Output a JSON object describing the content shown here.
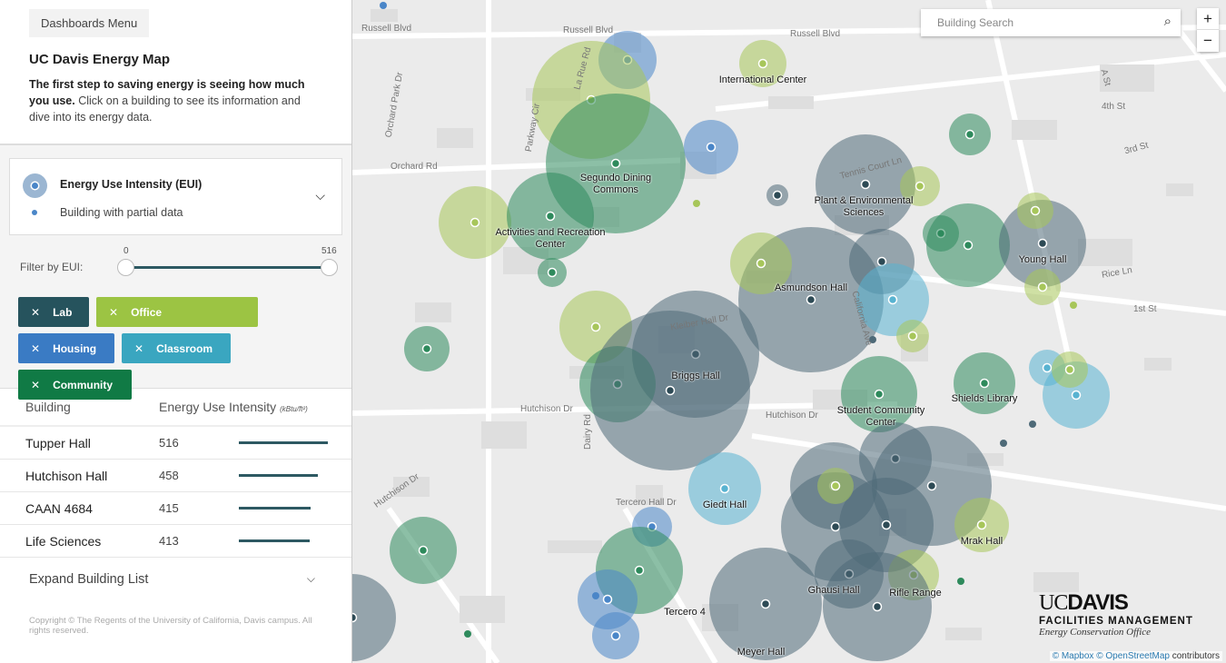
{
  "sidebar": {
    "menu_button": "Dashboards Menu",
    "title": "UC Davis Energy Map",
    "intro_bold": "The first step to saving energy is seeing how much you use.",
    "intro_rest": " Click on a building to see its information and dive into its energy data.",
    "legend": {
      "title": "Energy Use Intensity (EUI)",
      "partial": "Building with partial data"
    },
    "filter": {
      "label": "Filter by EUI:",
      "min": 0,
      "max": 516,
      "low_value": 0,
      "high_value": 516
    },
    "tags": [
      {
        "label": "Lab",
        "color": "#26535d"
      },
      {
        "label": "Office",
        "color": "#9cc443"
      },
      {
        "label": "Housing",
        "color": "#3a7bc4"
      },
      {
        "label": "Classroom",
        "color": "#3aa6c0"
      },
      {
        "label": "Community",
        "color": "#107a45"
      }
    ],
    "table": {
      "col_building": "Building",
      "col_eui": "Energy Use Intensity",
      "col_unit": "(kBtu/ft²)",
      "rows": [
        {
          "name": "Tupper Hall",
          "eui": 516
        },
        {
          "name": "Hutchison Hall",
          "eui": 458
        },
        {
          "name": "CAAN 4684",
          "eui": 415
        },
        {
          "name": "Life Sciences",
          "eui": 413
        }
      ]
    },
    "expand": "Expand Building List",
    "copyright": "Copyright © The Regents of the University of California, Davis campus. All rights reserved."
  },
  "map": {
    "search_placeholder": "Building Search",
    "zoom_in": "+",
    "zoom_out": "−",
    "labels": [
      "International Center",
      "Segundo Dining Commons",
      "Activities and Recreation Center",
      "Plant & Environmental Sciences",
      "Young Hall",
      "Asmundson Hall",
      "Briggs Hall",
      "Student Community Center",
      "Shields Library",
      "Giedt Hall",
      "Mrak Hall",
      "Ghausi Hall",
      "Rifle Range",
      "Tercero 4",
      "Meyer Hall"
    ],
    "streets": [
      "Russell Blvd",
      "Russell Blvd",
      "Russell Blvd",
      "La Rue Rd",
      "Orchard Park Dr",
      "Orchard Rd",
      "Parkway Cir",
      "Tennis Court Ln",
      "Hutchison Dr",
      "Hutchison Dr",
      "Tercero Hall Dr",
      "Dairy Rd",
      "4th St",
      "3rd St",
      "1st St",
      "A St",
      "Rice Ln",
      "Kleiber Hall Dr",
      "California Ave",
      "Hutchison Dr"
    ],
    "logo": {
      "uc": "UC",
      "davis": "DAVIS",
      "fm": "FACILITIES MANAGEMENT",
      "eco": "Energy Conservation Office"
    },
    "attribution": {
      "mapbox": "© Mapbox",
      "osm": "© OpenStreetMap",
      "contrib": " contributors"
    }
  }
}
